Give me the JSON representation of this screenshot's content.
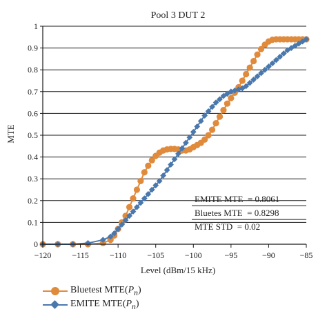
{
  "chart_data": {
    "type": "line",
    "title": "Pool 3 DUT 2",
    "xlabel": "Level (dBm/15 kHz)",
    "ylabel": "MTE",
    "xlim": [
      -120,
      -85
    ],
    "ylim": [
      0,
      1
    ],
    "xticks": [
      -120,
      -115,
      -110,
      -105,
      -100,
      -95,
      -90,
      -85
    ],
    "yticks": [
      0,
      0.1,
      0.2,
      0.3,
      0.4,
      0.5,
      0.6,
      0.7,
      0.8,
      0.9,
      1
    ],
    "xtick_labels": [
      "−120",
      "−115",
      "−110",
      "−105",
      "−100",
      "−95",
      "−90",
      "−85"
    ],
    "ytick_labels": [
      "0",
      "0.1",
      "0.2",
      "0.3",
      "0.4",
      "0.5",
      "0.6",
      "0.7",
      "0.8",
      "0.9",
      "1"
    ],
    "grid": "horizontal",
    "series": [
      {
        "name": "Bluetest MTE(Pn)",
        "color": "#e08a3c",
        "marker": "circle",
        "x": [
          -120,
          -118,
          -116,
          -114,
          -112,
          -111,
          -110.5,
          -110,
          -109.5,
          -109,
          -108.5,
          -108,
          -107.5,
          -107,
          -106.5,
          -106,
          -105.5,
          -105,
          -104.5,
          -104,
          -103.5,
          -103,
          -102.5,
          -102,
          -101.5,
          -101,
          -100.5,
          -100,
          -99.5,
          -99,
          -98.5,
          -98,
          -97.5,
          -97,
          -96.5,
          -96,
          -95.5,
          -95,
          -94.5,
          -94,
          -93.5,
          -93,
          -92.5,
          -92,
          -91.5,
          -91,
          -90.5,
          -90,
          -89.5,
          -89,
          -88.5,
          -88,
          -87.5,
          -87,
          -86.5,
          -86,
          -85.5,
          -85
        ],
        "y": [
          0.0,
          0.0,
          0.0,
          0.0,
          0.005,
          0.02,
          0.04,
          0.07,
          0.1,
          0.13,
          0.17,
          0.21,
          0.25,
          0.29,
          0.33,
          0.36,
          0.385,
          0.405,
          0.42,
          0.43,
          0.435,
          0.437,
          0.437,
          0.435,
          0.43,
          0.43,
          0.435,
          0.445,
          0.455,
          0.465,
          0.48,
          0.5,
          0.525,
          0.555,
          0.585,
          0.615,
          0.645,
          0.67,
          0.695,
          0.72,
          0.75,
          0.78,
          0.81,
          0.84,
          0.87,
          0.895,
          0.915,
          0.93,
          0.938,
          0.94,
          0.94,
          0.94,
          0.94,
          0.94,
          0.94,
          0.94,
          0.94,
          0.94
        ]
      },
      {
        "name": "EMITE MTE(Pn)",
        "color": "#4a78ad",
        "marker": "diamond",
        "x": [
          -120,
          -118,
          -116,
          -114,
          -112,
          -111,
          -110.5,
          -110,
          -109.5,
          -109,
          -108.5,
          -108,
          -107.5,
          -107,
          -106.5,
          -106,
          -105.5,
          -105,
          -104.5,
          -104,
          -103.5,
          -103,
          -102.5,
          -102,
          -101.5,
          -101,
          -100.5,
          -100,
          -99.5,
          -99,
          -98.5,
          -98,
          -97.5,
          -97,
          -96.5,
          -96,
          -95.5,
          -95,
          -94.5,
          -94,
          -93.5,
          -93,
          -92.5,
          -92,
          -91.5,
          -91,
          -90.5,
          -90,
          -89.5,
          -89,
          -88.5,
          -88,
          -87.5,
          -87,
          -86.5,
          -86,
          -85.5,
          -85
        ],
        "y": [
          0.0,
          0.0,
          0.0,
          0.005,
          0.02,
          0.035,
          0.05,
          0.07,
          0.09,
          0.11,
          0.13,
          0.15,
          0.17,
          0.19,
          0.21,
          0.23,
          0.25,
          0.27,
          0.29,
          0.315,
          0.34,
          0.365,
          0.39,
          0.415,
          0.44,
          0.465,
          0.49,
          0.515,
          0.54,
          0.565,
          0.59,
          0.61,
          0.63,
          0.65,
          0.665,
          0.68,
          0.69,
          0.7,
          0.705,
          0.71,
          0.715,
          0.725,
          0.74,
          0.755,
          0.77,
          0.785,
          0.8,
          0.815,
          0.83,
          0.845,
          0.86,
          0.875,
          0.89,
          0.9,
          0.91,
          0.92,
          0.93,
          0.94
        ]
      }
    ],
    "annotations": [
      "EMITE MTE  = 0.8061",
      "Bluetes MTE  = 0.8298",
      "MTE STD  = 0.02"
    ],
    "legend": {
      "placement": "bottom",
      "entries": [
        {
          "label": "Bluetest MTE(",
          "sub_symbol": "P",
          "sub": "n",
          "close": ")"
        },
        {
          "label": "EMITE MTE(",
          "sub_symbol": "P",
          "sub": "n",
          "close": ")"
        }
      ]
    }
  }
}
